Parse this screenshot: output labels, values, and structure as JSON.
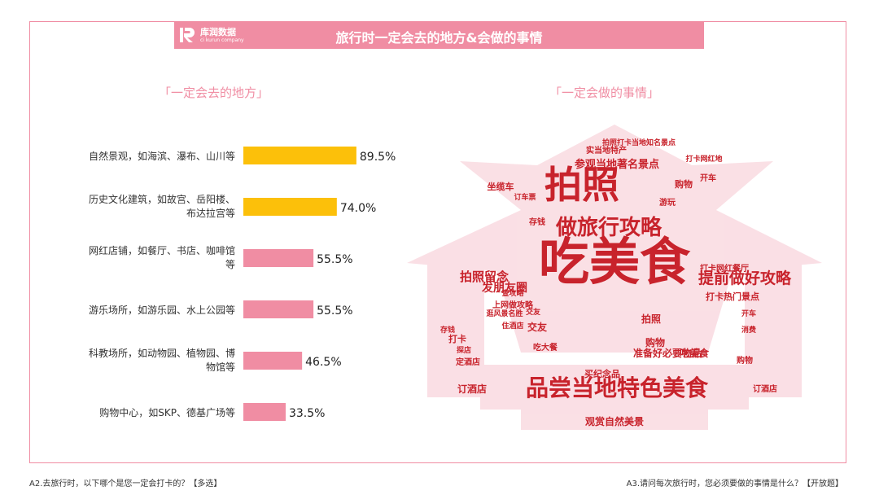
{
  "title": "旅行时一定会去的地方&会做的事情",
  "logo": {
    "name": "库润数据",
    "sub": "ci kurun company"
  },
  "left_section_title": "「一定会去的地方」",
  "right_section_title": "「一定会做的事情」",
  "footnote_left": "A2.去旅行时，以下哪个是您一定会打卡的？【多选】",
  "footnote_right": "A3.请问每次旅行时，您必须要做的事情是什么？【开放题】",
  "colors": {
    "accent": "#f08da3",
    "highlight": "#fcc00a",
    "bar": "#f08da3"
  },
  "chart_data": {
    "type": "bar",
    "orientation": "horizontal",
    "categories": [
      [
        "自然景观，如海滨、瀑布、山川等"
      ],
      [
        "历史文化建筑，如故宫、岳阳楼、",
        "布达拉宫等"
      ],
      [
        "网红店铺，如餐厅、书店、咖啡馆",
        "等"
      ],
      [
        "游乐场所，如游乐园、水上公园等"
      ],
      [
        "科教场所，如动物园、植物园、博",
        "物馆等"
      ],
      [
        "购物中心，如SKP、德基广场等"
      ]
    ],
    "values": [
      89.5,
      74.0,
      55.5,
      55.5,
      46.5,
      33.5
    ],
    "value_labels": [
      "89.5%",
      "74.0%",
      "55.5%",
      "55.5%",
      "46.5%",
      "33.5%"
    ],
    "highlight_count": 2,
    "xlim": [
      0,
      100
    ]
  },
  "word_cloud": {
    "main": [
      {
        "text": "吃美食",
        "color": "#c8232c"
      },
      {
        "text": "拍照",
        "color": "#c8232c"
      },
      {
        "text": "做旅行攻略",
        "color": "#c8232c"
      },
      {
        "text": "品尝当地特色美食",
        "color": "#c8232c"
      },
      {
        "text": "提前做好攻略",
        "color": "#c8232c"
      },
      {
        "text": "拍照留念",
        "color": "#c8232c"
      },
      {
        "text": "参观当地著名景点",
        "color": "#c8232c"
      },
      {
        "text": "发朋友圈",
        "color": "#c8232c"
      },
      {
        "text": "实当地特产",
        "color": "#c8232c"
      },
      {
        "text": "购物",
        "color": "#c8232c"
      },
      {
        "text": "打卡热门景点",
        "color": "#c8232c"
      },
      {
        "text": "上网做攻略",
        "color": "#c8232c"
      },
      {
        "text": "交友",
        "color": "#c8232c"
      },
      {
        "text": "准备好必要物品",
        "color": "#c8232c"
      },
      {
        "text": "订酒店",
        "color": "#c8232c"
      },
      {
        "text": "观赏自然美景",
        "color": "#c8232c"
      },
      {
        "text": "拍照打卡当地知名景点",
        "color": "#c8232c"
      },
      {
        "text": "坐缆车",
        "color": "#c8232c"
      },
      {
        "text": "存钱",
        "color": "#c8232c"
      },
      {
        "text": "吃美食",
        "color": "#c8232c"
      },
      {
        "text": "定酒店",
        "color": "#c8232c"
      },
      {
        "text": "打卡",
        "color": "#c8232c"
      },
      {
        "text": "购物",
        "color": "#c8232c"
      },
      {
        "text": "拍照",
        "color": "#c8232c"
      },
      {
        "text": "游玩",
        "color": "#c8232c"
      },
      {
        "text": "开车",
        "color": "#c8232c"
      },
      {
        "text": "订酒店",
        "color": "#c8232c"
      },
      {
        "text": "打卡网红餐厅",
        "color": "#c8232c"
      },
      {
        "text": "打卡网红地",
        "color": "#c8232c"
      },
      {
        "text": "买纪念品",
        "color": "#c8232c"
      },
      {
        "text": "查攻略",
        "color": "#c8232c"
      },
      {
        "text": "逛风景名胜",
        "color": "#c8232c"
      },
      {
        "text": "吃大餐",
        "color": "#c8232c"
      },
      {
        "text": "住酒店",
        "color": "#c8232c"
      },
      {
        "text": "交友",
        "color": "#c8232c"
      },
      {
        "text": "探店",
        "color": "#c8232c"
      },
      {
        "text": "开车",
        "color": "#c8232c"
      },
      {
        "text": "订车票",
        "color": "#c8232c"
      },
      {
        "text": "购物",
        "color": "#c8232c"
      },
      {
        "text": "存钱",
        "color": "#c8232c"
      },
      {
        "text": "消费",
        "color": "#c8232c"
      }
    ]
  }
}
